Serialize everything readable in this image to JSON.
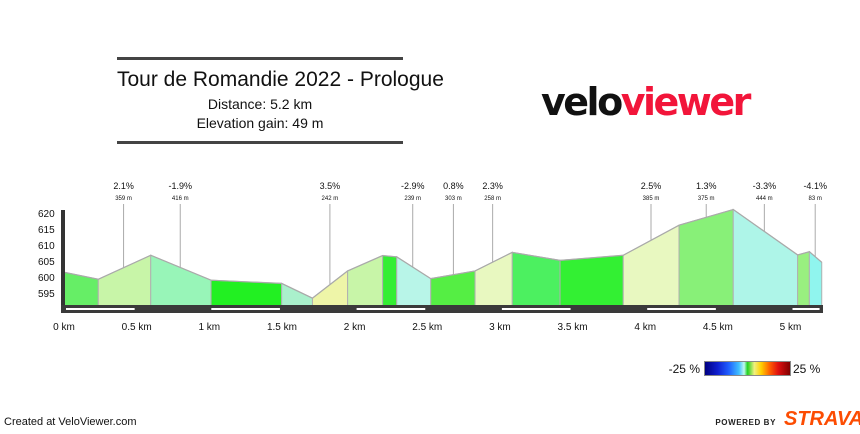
{
  "header": {
    "title": "Tour de Romandie 2022 - Prologue",
    "distance": "Distance: 5.2 km",
    "elevation_gain": "Elevation gain: 49 m"
  },
  "logo": {
    "part1": "velo",
    "part2": "viewer",
    "brand_color": "#f2153a"
  },
  "legend": {
    "min_label": "-25 %",
    "max_label": "25 %"
  },
  "footer": {
    "created": "Created at VeloViewer.com",
    "powered_by": "POWERED BY",
    "strava": "STRAVA",
    "strava_color": "#fc4c02"
  },
  "chart_data": {
    "type": "area",
    "xlabel": "",
    "ylabel": "",
    "xlim": [
      0,
      5.2
    ],
    "ylim": [
      591,
      622
    ],
    "x_ticks": [
      0,
      0.5,
      1,
      1.5,
      2,
      2.5,
      3,
      3.5,
      4,
      4.5,
      5
    ],
    "x_tick_labels": [
      "0 km",
      "0.5 km",
      "1 km",
      "1.5 km",
      "2 km",
      "2.5 km",
      "3 km",
      "3.5 km",
      "4 km",
      "4.5 km",
      "5 km"
    ],
    "y_ticks": [
      595,
      600,
      605,
      610,
      615,
      620
    ],
    "y_tick_labels": [
      "595",
      "600",
      "605",
      "610",
      "615",
      "620"
    ],
    "profile_km": [
      0,
      0.236,
      0.597,
      1.012,
      1.498,
      1.71,
      1.952,
      2.193,
      2.29,
      2.524,
      2.829,
      3.085,
      3.414,
      3.849,
      4.233,
      4.606,
      5.049,
      5.13,
      5.215
    ],
    "profile_elev": [
      601.5,
      599.3,
      606.8,
      599.0,
      598.0,
      593.4,
      601.9,
      606.7,
      606.3,
      599.5,
      601.9,
      607.7,
      605.2,
      606.8,
      616.2,
      621.1,
      606.9,
      607.9,
      604.6
    ],
    "segment_colors": [
      "#66ee66",
      "#c8f5a8",
      "#98f5b8",
      "#22f022",
      "#aaf0cc",
      "#eef5a8",
      "#c8f5a8",
      "#33ee33",
      "#b8f5e8",
      "#55ee44",
      "#e8f8c0",
      "#4cf060",
      "#33f033",
      "#e8f8c0",
      "#88f078",
      "#aef5e8",
      "#99f080",
      "#90f5ee"
    ],
    "annotations": [
      {
        "km": 0.41,
        "grade": "2.1%",
        "length": "359 m"
      },
      {
        "km": 0.8,
        "grade": "-1.9%",
        "length": "416 m"
      },
      {
        "km": 1.83,
        "grade": "3.5%",
        "length": "242 m"
      },
      {
        "km": 2.4,
        "grade": "-2.9%",
        "length": "239 m"
      },
      {
        "km": 2.68,
        "grade": "0.8%",
        "length": "303 m"
      },
      {
        "km": 2.95,
        "grade": "2.3%",
        "length": "258 m"
      },
      {
        "km": 4.04,
        "grade": "2.5%",
        "length": "385 m"
      },
      {
        "km": 4.42,
        "grade": "1.3%",
        "length": "375 m"
      },
      {
        "km": 4.82,
        "grade": "-3.3%",
        "length": "444 m"
      },
      {
        "km": 5.17,
        "grade": "-4.1%",
        "length": "83 m"
      }
    ]
  }
}
